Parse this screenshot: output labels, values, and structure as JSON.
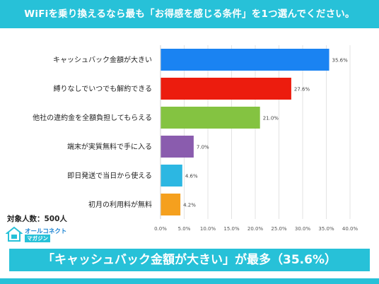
{
  "header": {
    "title": "WiFiを乗り換えるなら最も「お得感を感じる条件」を1つ選んでください。"
  },
  "chart_data": {
    "type": "bar",
    "orientation": "horizontal",
    "title": "",
    "xlabel": "",
    "ylabel": "",
    "categories": [
      "キャッシュバック金額が大きい",
      "縛りなしでいつでも解約できる",
      "他社の違約金を全額負担してもらえる",
      "端末が実質無料で手に入る",
      "即日発送で当日から使える",
      "初月の利用料が無料"
    ],
    "values": [
      35.6,
      27.6,
      21.0,
      7.0,
      4.6,
      4.2
    ],
    "value_labels": [
      "35.6%",
      "27.6%",
      "21.0%",
      "7.0%",
      "4.6%",
      "4.2%"
    ],
    "colors": [
      "#1a83f2",
      "#ec1c0e",
      "#84c341",
      "#8a5cae",
      "#2cb7e2",
      "#f5a01e"
    ],
    "xlim": [
      0,
      40
    ],
    "ticks": [
      "0.0%",
      "5.0%",
      "10.0%",
      "15.0%",
      "20.0%",
      "25.0%",
      "30.0%",
      "35.0%",
      "40.0%"
    ],
    "grid": true,
    "legend": "none"
  },
  "footer": {
    "sample_size": "対象人数：500人",
    "logo_main": "オールコネクト",
    "logo_sub": "マガジン",
    "banner": "「キャッシュバック金額が大きい」が最多（35.6%）"
  },
  "colors": {
    "accent": "#27c1d8"
  }
}
